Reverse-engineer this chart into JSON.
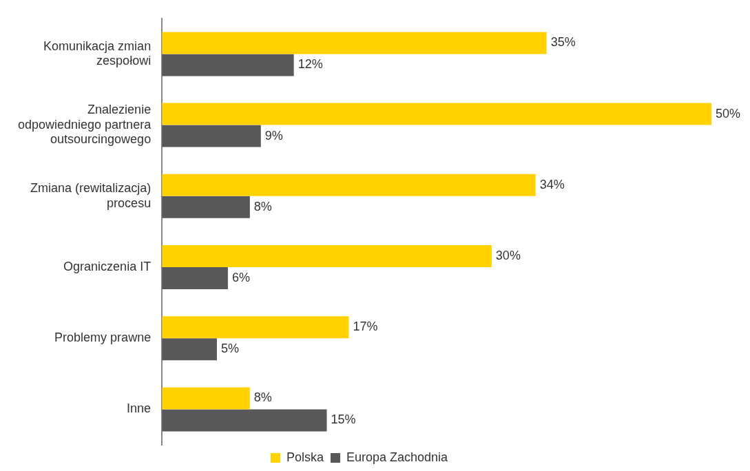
{
  "chart_data": {
    "type": "bar",
    "orientation": "horizontal",
    "legend": "bottom",
    "grid": false,
    "categories": [
      "Komunikacja zmian zespołowi",
      "Znalezienie odpowiedniego partnera outsourcingowego",
      "Zmiana (rewitalizacja) procesu",
      "Ograniczenia IT",
      "Problemy prawne",
      "Inne"
    ],
    "series": [
      {
        "name": "Polska",
        "color": "#ffd200",
        "values": [
          35,
          50,
          34,
          30,
          17,
          8
        ],
        "value_labels": [
          "35%",
          "50%",
          "34%",
          "30%",
          "17%",
          "8%"
        ]
      },
      {
        "name": "Europa Zachodnia",
        "color": "#58585a",
        "values": [
          12,
          9,
          8,
          6,
          5,
          15
        ],
        "value_labels": [
          "12%",
          "9%",
          "8%",
          "6%",
          "5%",
          "15%"
        ]
      }
    ]
  }
}
